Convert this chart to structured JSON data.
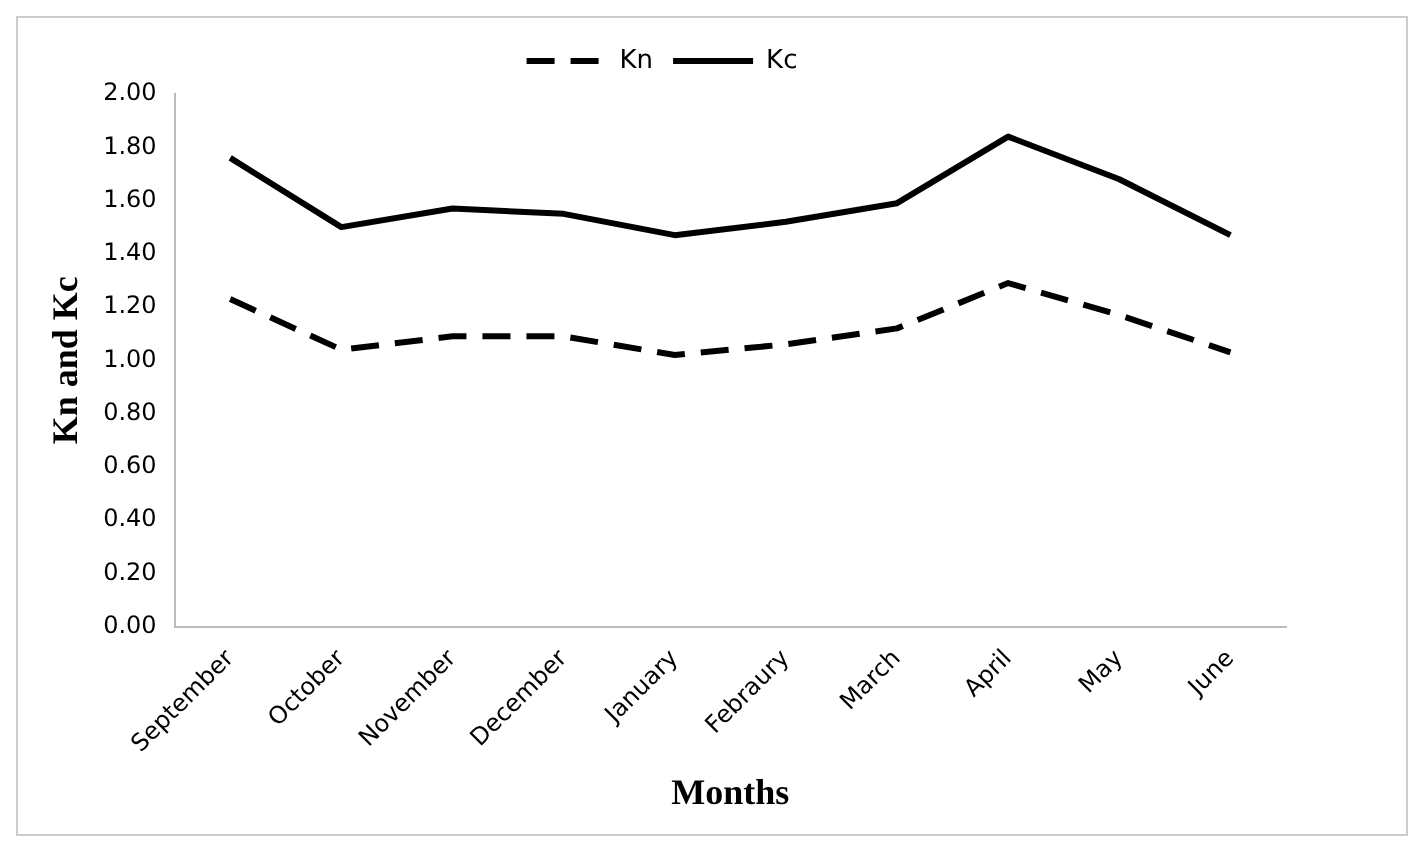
{
  "chart_data": {
    "type": "line",
    "xlabel": "Months",
    "ylabel": "Kn and Kc",
    "categories": [
      "September",
      "October",
      "November",
      "December",
      "January",
      "Febraury",
      "March",
      "April",
      "May",
      "June"
    ],
    "series": [
      {
        "name": "Kn",
        "color": "#000000",
        "line_style": "dashed",
        "values": [
          1.23,
          1.04,
          1.09,
          1.09,
          1.02,
          1.06,
          1.12,
          1.29,
          1.17,
          1.03
        ]
      },
      {
        "name": "Kc",
        "color": "#000000",
        "line_style": "solid",
        "values": [
          1.76,
          1.5,
          1.57,
          1.55,
          1.47,
          1.52,
          1.59,
          1.84,
          1.68,
          1.47
        ]
      }
    ],
    "ylim": [
      0,
      2
    ],
    "yticks": [
      {
        "value": 0,
        "label": "0.00"
      },
      {
        "value": 0.2,
        "label": "0.20"
      },
      {
        "value": 0.4,
        "label": "0.40"
      },
      {
        "value": 0.6,
        "label": "0.60"
      },
      {
        "value": 0.8,
        "label": "0.80"
      },
      {
        "value": 1,
        "label": "1.00"
      },
      {
        "value": 1.2,
        "label": "1.20"
      },
      {
        "value": 1.4,
        "label": "1.40"
      },
      {
        "value": 1.6,
        "label": "1.60"
      },
      {
        "value": 1.8,
        "label": "1.80"
      },
      {
        "value": 2,
        "label": "2.00"
      }
    ],
    "grid": false,
    "legend": "top",
    "marker": "none"
  }
}
